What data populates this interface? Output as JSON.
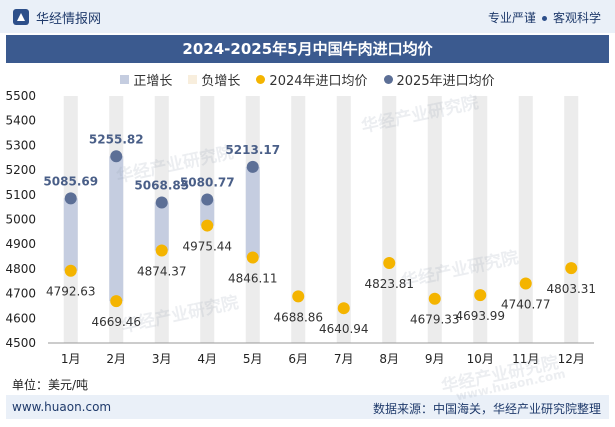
{
  "header": {
    "brand": "华经情报网",
    "tagline_a": "专业严谨",
    "tagline_b": "客观科学"
  },
  "footer": {
    "website": "www.huaon.com",
    "source": "数据来源：中国海关，华经产业研究院整理"
  },
  "watermarks": [
    "华经产业研究院",
    "华经产业研究院",
    "华经产业研究院",
    "华经产业研究院",
    "华经产业研究院",
    "华经产业研究院"
  ],
  "watermark_site": "www.huaon.com",
  "colors": {
    "increase_bar": "#c5cde0",
    "decrease_bar": "#f8eedd",
    "series_2024": "#f4b400",
    "series_2025": "#5c6f96",
    "background_stripe": "#ececec",
    "title_bar": "#3b5a8f"
  },
  "chart_data": {
    "type": "line",
    "title": "2024-2025年5月中国牛肉进口均价",
    "unit_label": "单位：美元/吨",
    "categories": [
      "1月",
      "2月",
      "3月",
      "4月",
      "5月",
      "6月",
      "7月",
      "8月",
      "9月",
      "10月",
      "11月",
      "12月"
    ],
    "ylim": [
      4500,
      5500
    ],
    "yticks": [
      4500,
      4600,
      4700,
      4800,
      4900,
      5000,
      5100,
      5200,
      5300,
      5400,
      5500
    ],
    "legend": [
      "正增长",
      "负增长",
      "2024年进口均价",
      "2025年进口均价"
    ],
    "legend_position": "top",
    "series": [
      {
        "name": "2024年进口均价",
        "values": [
          4792.63,
          4669.46,
          4874.37,
          4975.44,
          4846.11,
          4688.86,
          4640.94,
          4823.81,
          4679.33,
          4693.99,
          4740.77,
          4803.31
        ]
      },
      {
        "name": "2025年进口均价",
        "values": [
          5085.69,
          5255.82,
          5068.85,
          5080.77,
          5213.17,
          null,
          null,
          null,
          null,
          null,
          null,
          null
        ]
      }
    ]
  }
}
